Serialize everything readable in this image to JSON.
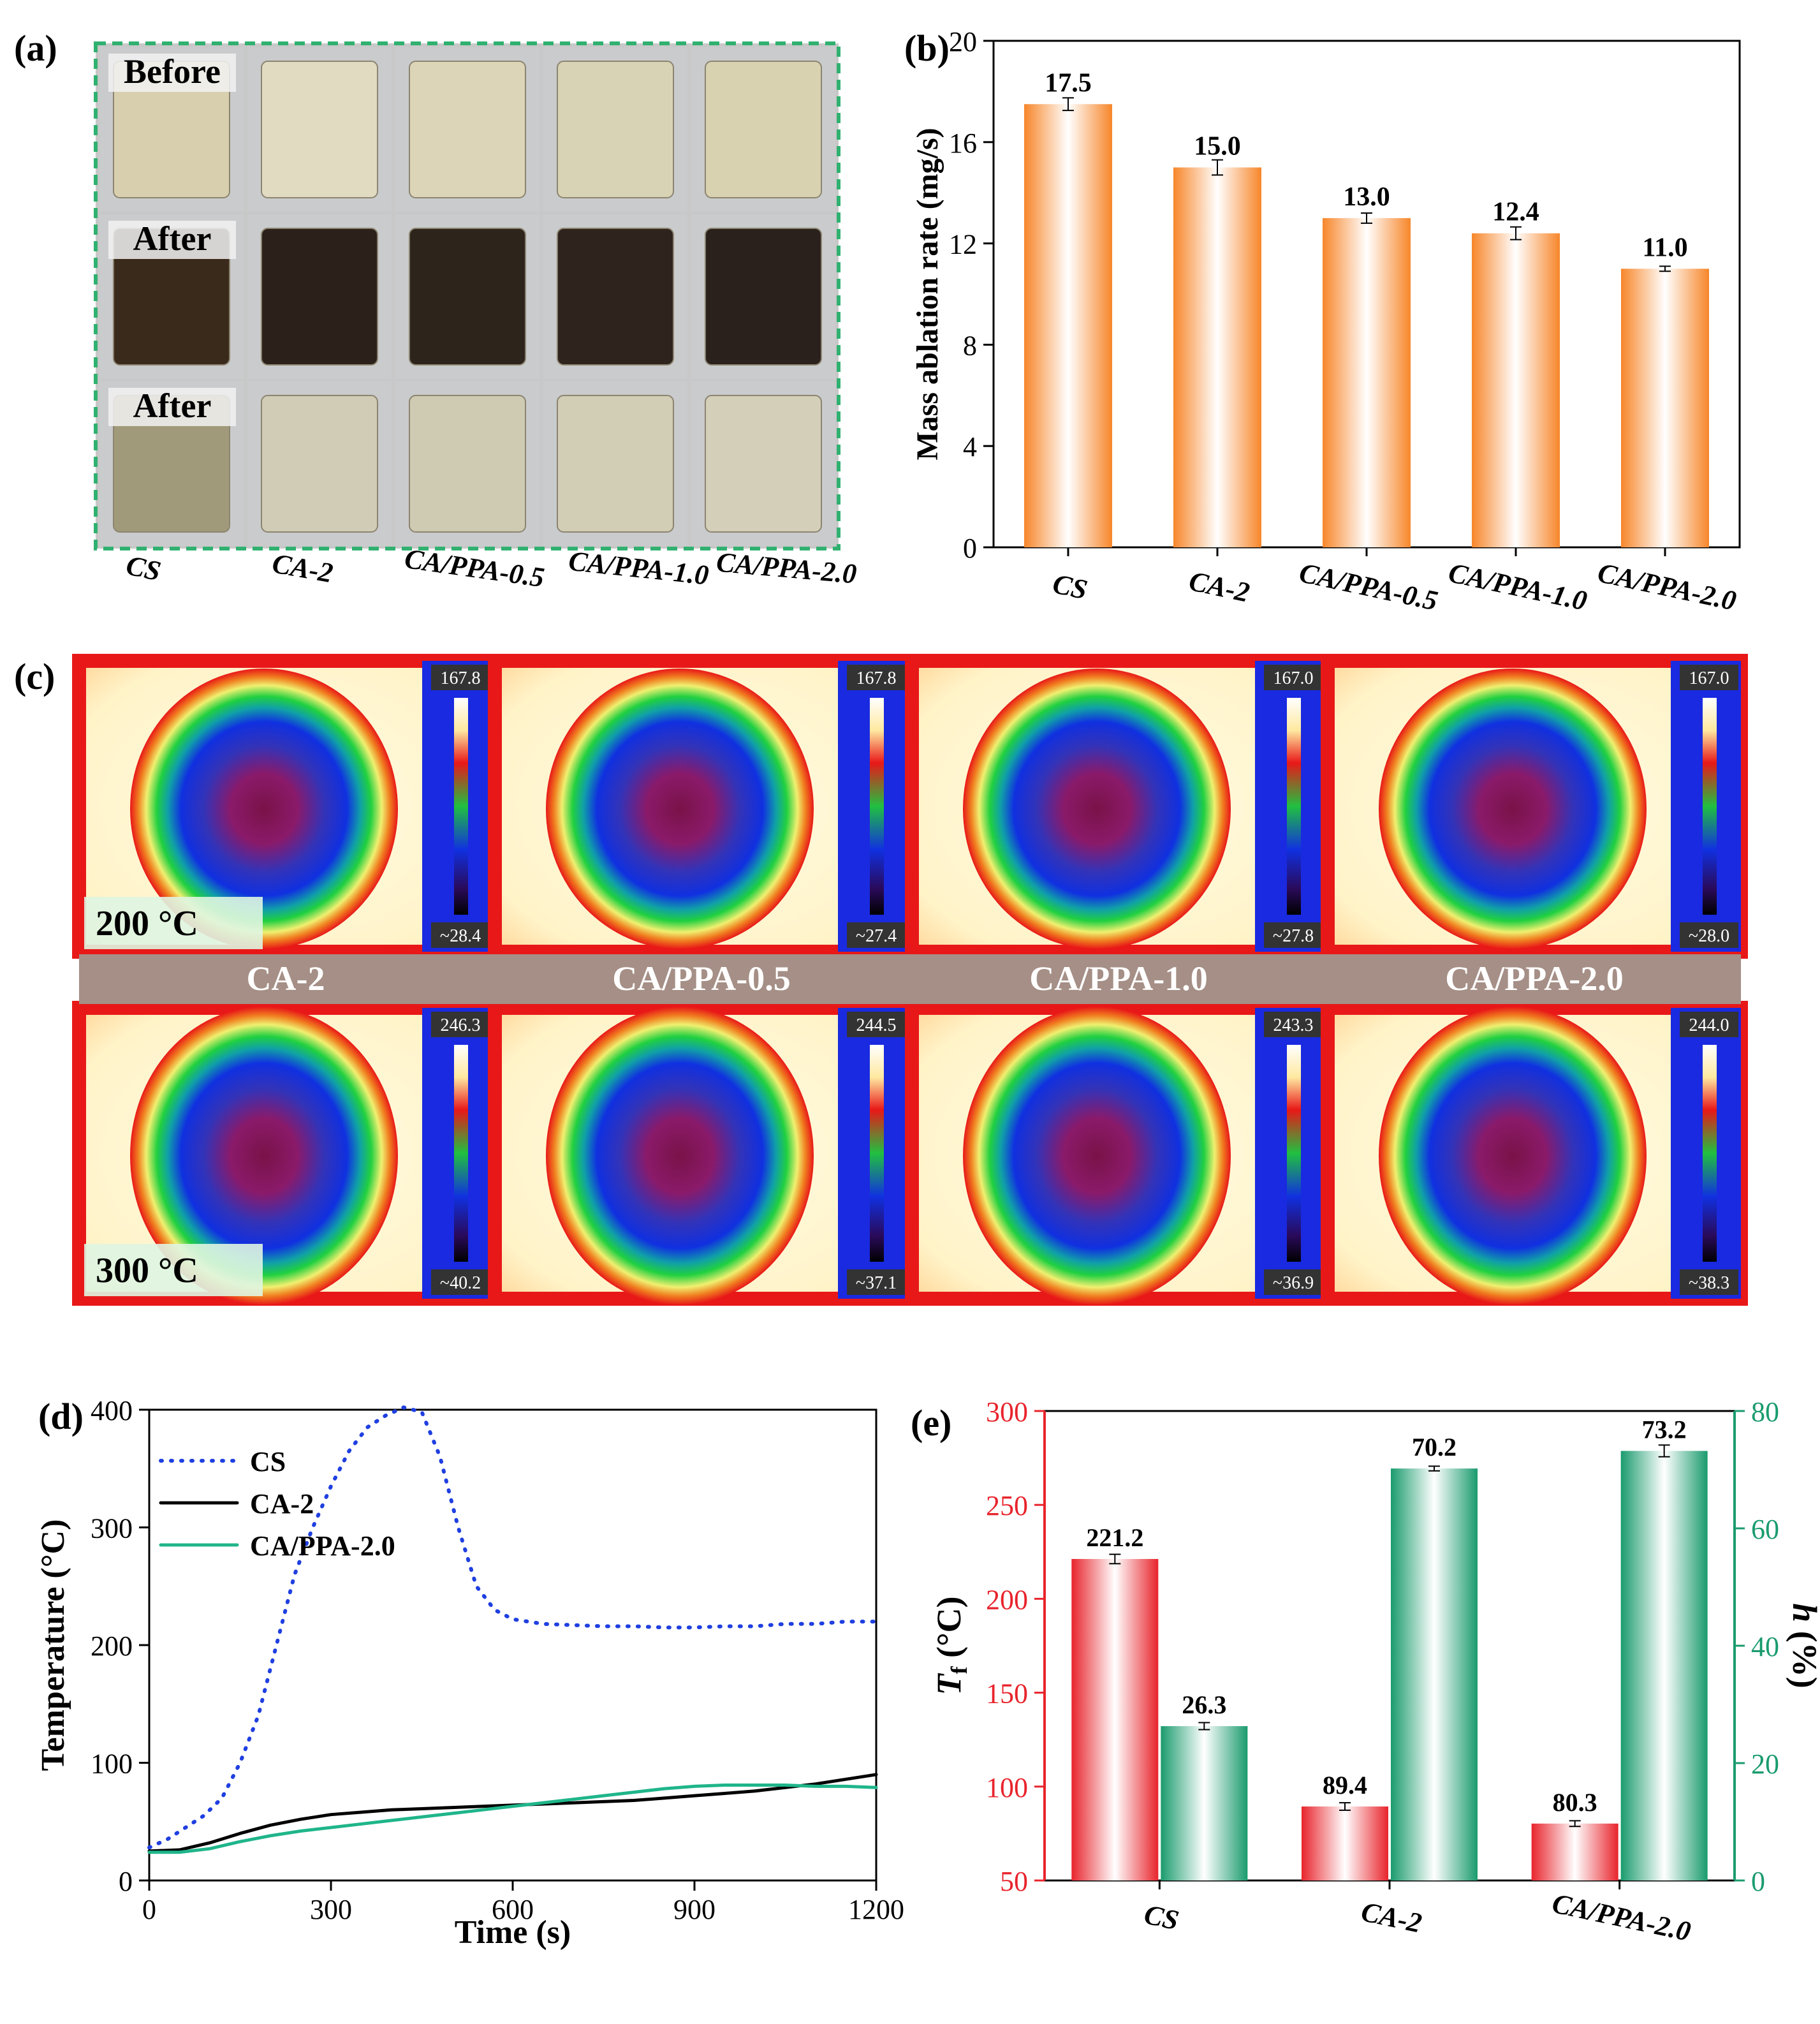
{
  "panels": {
    "a": {
      "label": "(a)",
      "row_labels": [
        "Before",
        "After",
        "After"
      ],
      "samples": [
        "CS",
        "CA-2",
        "CA/PPA-0.5",
        "CA/PPA-1.0",
        "CA/PPA-2.0"
      ],
      "colors": {
        "before": [
          "#d8cfae",
          "#e1dbc2",
          "#dcd5b8",
          "#d9d3b5",
          "#d8d2b1"
        ],
        "burnt": [
          "#3a2a1c",
          "#2b211a",
          "#2d241b",
          "#2e241d",
          "#2a211c"
        ],
        "after2": [
          "#a19a7a",
          "#d1ccb5",
          "#cfcbb2",
          "#d2cdb5",
          "#d4cfb8"
        ]
      }
    },
    "b": {
      "label": "(b)",
      "chart_data": {
        "type": "bar",
        "categories": [
          "CS",
          "CA-2",
          "CA/PPA-0.5",
          "CA/PPA-1.0",
          "CA/PPA-2.0"
        ],
        "values": [
          17.5,
          15.0,
          13.0,
          12.4,
          11.0
        ],
        "value_labels": [
          "17.5",
          "15.0",
          "13.0",
          "12.4",
          "11.0"
        ],
        "errors": [
          0.25,
          0.3,
          0.2,
          0.25,
          0.1
        ],
        "ylabel": "Mass ablation rate (mg/s)",
        "ylim": [
          0,
          20
        ],
        "yticks": [
          0,
          4,
          8,
          12,
          16,
          20
        ],
        "bar_color": "#f7862a"
      }
    },
    "c": {
      "label": "(c)",
      "samples": [
        "CA-2",
        "CA/PPA-0.5",
        "CA/PPA-1.0",
        "CA/PPA-2.0"
      ],
      "row_temps": [
        "200 °C",
        "300 °C"
      ],
      "max_labels": [
        [
          "167.8",
          "167.8",
          "167.0",
          "167.0"
        ],
        [
          "246.3",
          "244.5",
          "243.3",
          "244.0"
        ]
      ],
      "min_labels": [
        [
          "~28.4",
          "~27.4",
          "~27.8",
          "~28.0"
        ],
        [
          "~40.2",
          "~37.1",
          "~36.9",
          "~38.3"
        ]
      ],
      "band_color": "#a58f86"
    },
    "d": {
      "label": "(d)",
      "chart_data": {
        "type": "line",
        "xlabel": "Time (s)",
        "ylabel": "Temperature (°C)",
        "xlim": [
          0,
          1200
        ],
        "ylim": [
          0,
          400
        ],
        "xticks": [
          0,
          300,
          600,
          900,
          1200
        ],
        "yticks": [
          0,
          100,
          200,
          300,
          400
        ],
        "series": [
          {
            "name": "CS",
            "color": "#1f3fe0",
            "style": "dotted",
            "x": [
              0,
              30,
              60,
              90,
              120,
              150,
              180,
              210,
              240,
              270,
              300,
              330,
              360,
              390,
              420,
              450,
              480,
              510,
              540,
              570,
              600,
              650,
              700,
              750,
              800,
              850,
              900,
              950,
              1000,
              1050,
              1100,
              1150,
              1200
            ],
            "y": [
              28,
              35,
              45,
              55,
              70,
              100,
              140,
              200,
              260,
              300,
              335,
              365,
              385,
              395,
              402,
              398,
              360,
              300,
              250,
              230,
              222,
              218,
              217,
              216,
              216,
              215,
              215,
              216,
              216,
              218,
              218,
              220,
              220
            ]
          },
          {
            "name": "CA-2",
            "color": "#000000",
            "style": "solid",
            "x": [
              0,
              50,
              100,
              150,
              200,
              250,
              300,
              350,
              400,
              450,
              500,
              550,
              600,
              650,
              700,
              750,
              800,
              850,
              900,
              950,
              1000,
              1050,
              1100,
              1150,
              1200
            ],
            "y": [
              25,
              26,
              32,
              40,
              47,
              52,
              56,
              58,
              60,
              61,
              62,
              63,
              64,
              65,
              66,
              67,
              68,
              70,
              72,
              74,
              76,
              79,
              82,
              86,
              90
            ]
          },
          {
            "name": "CA/PPA-2.0",
            "color": "#1fb58a",
            "style": "solid",
            "x": [
              0,
              50,
              100,
              150,
              200,
              250,
              300,
              350,
              400,
              450,
              500,
              550,
              600,
              650,
              700,
              750,
              800,
              850,
              900,
              950,
              1000,
              1050,
              1100,
              1150,
              1200
            ],
            "y": [
              24,
              24,
              27,
              33,
              38,
              42,
              45,
              48,
              51,
              54,
              57,
              60,
              63,
              66,
              69,
              72,
              75,
              78,
              80,
              81,
              81,
              81,
              80,
              80,
              79
            ]
          }
        ]
      }
    },
    "e": {
      "label": "(e)",
      "chart_data": {
        "type": "bar",
        "categories": [
          "CS",
          "CA-2",
          "CA/PPA-2.0"
        ],
        "series": [
          {
            "name": "Tf",
            "axis": "left",
            "color": "#e8242c",
            "values": [
              221.2,
              89.4,
              80.3
            ],
            "value_labels": [
              "221.2",
              "89.4",
              "80.3"
            ],
            "errors": [
              2.5,
              2.0,
              1.5
            ]
          },
          {
            "name": "h",
            "axis": "right",
            "color": "#1a9b6e",
            "values": [
              26.3,
              70.2,
              73.2
            ],
            "value_labels": [
              "26.3",
              "70.2",
              "73.2"
            ],
            "errors": [
              0.6,
              0.4,
              1.0
            ]
          }
        ],
        "ylabel_left_italic": "T",
        "ylabel_left_sub": "f",
        "ylabel_left_unit": " (°C)",
        "ylabel_right_italic": "h",
        "ylabel_right_unit": " (%)",
        "ylim_left": [
          50,
          300
        ],
        "ylim_right": [
          0,
          80
        ],
        "yticks_left": [
          50,
          100,
          150,
          200,
          250,
          300
        ],
        "yticks_right": [
          0,
          20,
          40,
          60,
          80
        ],
        "left_axis_color": "#e8242c",
        "right_axis_color": "#1a9b6e"
      }
    }
  }
}
